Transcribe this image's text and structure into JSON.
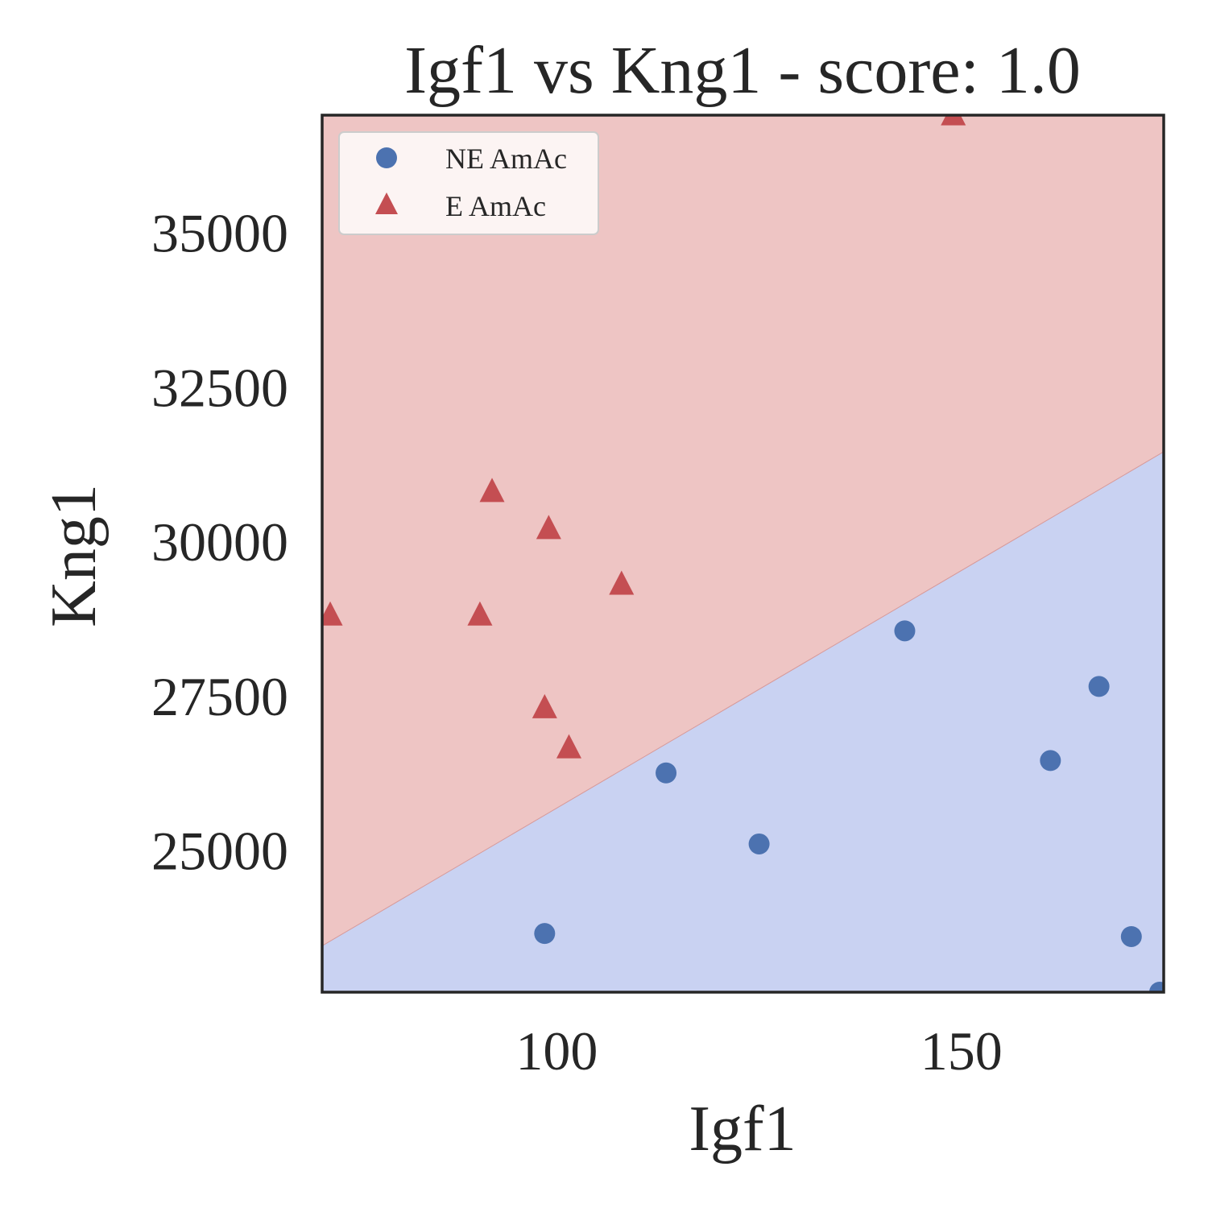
{
  "chart_data": {
    "type": "scatter",
    "title": "Igf1 vs Kng1 - score: 1.0",
    "xlabel": "Igf1",
    "ylabel": "Kng1",
    "xlim": [
      71,
      175
    ],
    "ylim": [
      22700,
      36900
    ],
    "xticks": [
      100,
      150
    ],
    "yticks": [
      25000,
      27500,
      30000,
      32500,
      35000
    ],
    "grid": false,
    "legend_position": "top-left",
    "decision_boundary": {
      "x": [
        71,
        175
      ],
      "y": [
        23450,
        31450
      ],
      "region_below_color": "#c9d2f2",
      "region_above_color": "#eec5c4",
      "region_below_class": "NE AmAc",
      "region_above_class": "E AmAc"
    },
    "series": [
      {
        "name": "NE AmAc",
        "marker": "circle",
        "color": "#4c72b0",
        "points": [
          {
            "x": 98.5,
            "y": 23650
          },
          {
            "x": 113.5,
            "y": 26250
          },
          {
            "x": 125,
            "y": 25100
          },
          {
            "x": 143,
            "y": 28550
          },
          {
            "x": 161,
            "y": 26450
          },
          {
            "x": 167,
            "y": 27650
          },
          {
            "x": 171,
            "y": 23600
          },
          {
            "x": 174.5,
            "y": 22700
          }
        ]
      },
      {
        "name": "E AmAc",
        "marker": "triangle",
        "color": "#c44e52",
        "points": [
          {
            "x": 72,
            "y": 28800
          },
          {
            "x": 90.5,
            "y": 28800
          },
          {
            "x": 92,
            "y": 30800
          },
          {
            "x": 98.5,
            "y": 27300
          },
          {
            "x": 99,
            "y": 30200
          },
          {
            "x": 101.5,
            "y": 26650
          },
          {
            "x": 108,
            "y": 29300
          },
          {
            "x": 149,
            "y": 36900
          }
        ]
      }
    ]
  }
}
